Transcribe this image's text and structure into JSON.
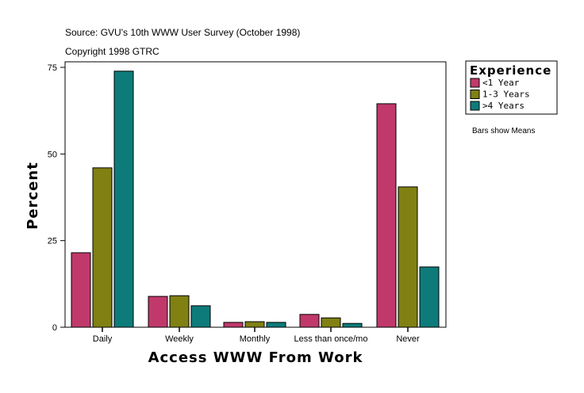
{
  "chart_data": {
    "type": "bar",
    "title": "Source: GVU's 10th WWW User Survey (October 1998)",
    "subtitle": "Copyright 1998 GTRC",
    "xlabel": "Access WWW From Work",
    "ylabel": "Percent",
    "ylim": [
      0,
      75
    ],
    "yticks": [
      0,
      25,
      50,
      75
    ],
    "categories": [
      "Daily",
      "Weekly",
      "Monthly",
      "Less than once/mo",
      "Never"
    ],
    "legend_title": "Experience",
    "legend_placement": "right",
    "note": "Bars show Means",
    "series": [
      {
        "name": "<1 Year",
        "color": "#C0396A",
        "values": [
          21.5,
          8.9,
          1.4,
          3.7,
          64.5
        ]
      },
      {
        "name": "1-3 Years",
        "color": "#808013",
        "values": [
          46.0,
          9.1,
          1.6,
          2.7,
          40.5
        ]
      },
      {
        "name": ">4 Years",
        "color": "#0E7B7B",
        "values": [
          73.9,
          6.2,
          1.4,
          1.1,
          17.4
        ]
      }
    ]
  }
}
